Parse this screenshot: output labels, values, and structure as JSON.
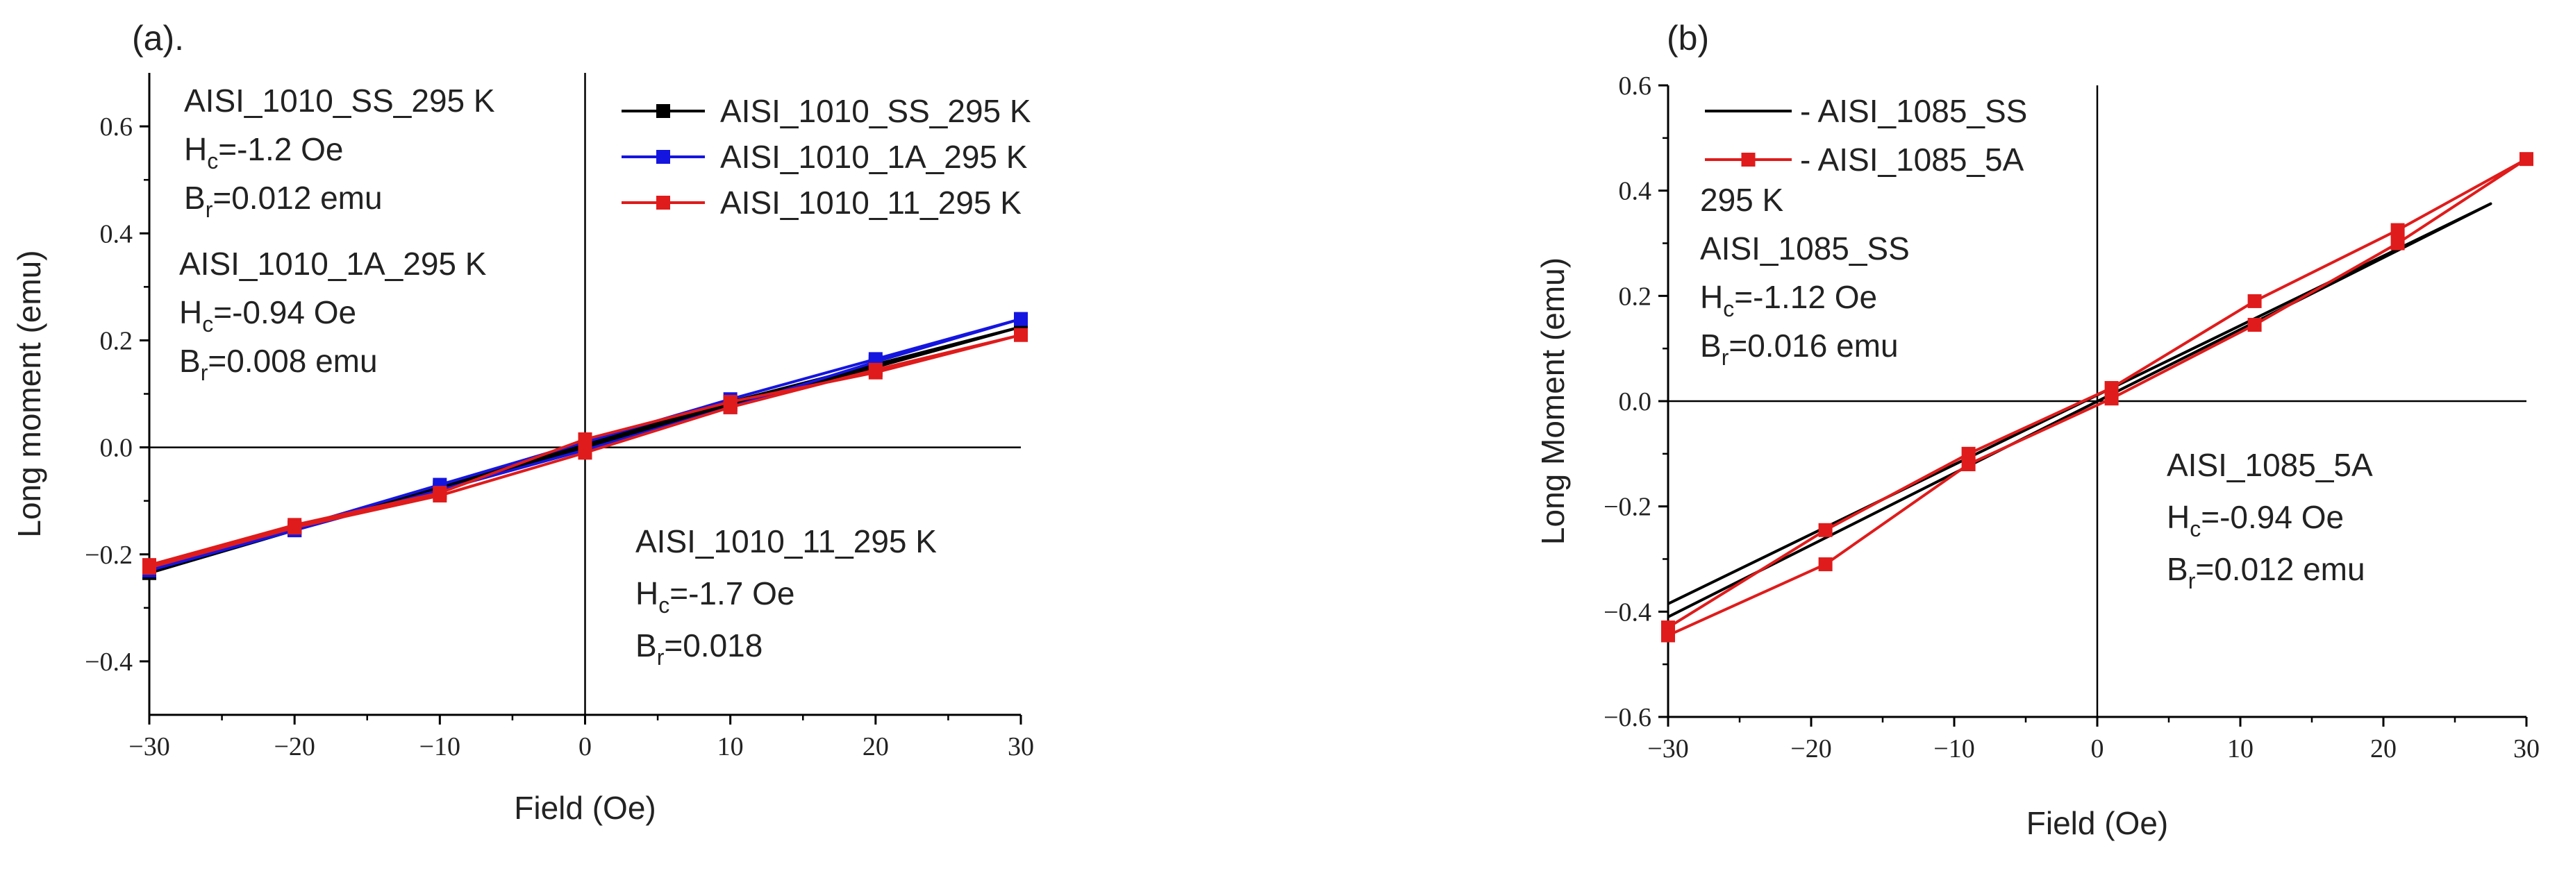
{
  "chart_data": [
    {
      "type": "line",
      "panel_label": "(a).",
      "xlabel": "Field (Oe)",
      "ylabel": "Long moment (emu)",
      "xlim": [
        -30,
        30
      ],
      "ylim": [
        -0.5,
        0.7
      ],
      "xticks": [
        -30,
        -20,
        -10,
        0,
        10,
        20,
        30
      ],
      "yticks": [
        -0.4,
        -0.2,
        0.0,
        0.2,
        0.4,
        0.6
      ],
      "xtick_labels": [
        "−30",
        "−20",
        "−10",
        "0",
        "10",
        "20",
        "30"
      ],
      "ytick_labels": [
        "−0.4",
        "−0.2",
        "0.0",
        "0.2",
        "0.4",
        "0.6"
      ],
      "legend_position": "top-right",
      "series": [
        {
          "name": "AISI_1010_SS_295 K",
          "color": "#000000",
          "x": [
            -30,
            -20,
            -10,
            0,
            10,
            20,
            30,
            20,
            10,
            0,
            -10,
            -20,
            -30
          ],
          "y": [
            -0.235,
            -0.155,
            -0.075,
            0.005,
            0.085,
            0.155,
            0.225,
            0.15,
            0.08,
            0.0,
            -0.08,
            -0.15,
            -0.225
          ]
        },
        {
          "name": "AISI_1010_1A_295 K",
          "color": "#1515e0",
          "x": [
            -30,
            -20,
            -10,
            0,
            10,
            20,
            30,
            20,
            10,
            0,
            -10,
            -20,
            -30
          ],
          "y": [
            -0.225,
            -0.15,
            -0.07,
            0.01,
            0.09,
            0.165,
            0.24,
            0.16,
            0.075,
            -0.005,
            -0.08,
            -0.155,
            -0.23
          ]
        },
        {
          "name": "AISI_1010_11_295 K",
          "color": "#e01b1b",
          "x": [
            -30,
            -20,
            -10,
            0,
            10,
            20,
            30,
            20,
            10,
            0,
            -10,
            -20,
            -30
          ],
          "y": [
            -0.22,
            -0.145,
            -0.085,
            0.015,
            0.085,
            0.14,
            0.21,
            0.145,
            0.075,
            -0.01,
            -0.09,
            -0.15,
            -0.225
          ]
        }
      ],
      "annotations": [
        {
          "lines": [
            {
              "text": "AISI_1010_SS_295 K"
            },
            {
              "main": "H",
              "sub": "c",
              "rest": "=-1.2 Oe"
            },
            {
              "main": "B",
              "sub": "r",
              "rest": "=0.012 emu"
            }
          ]
        },
        {
          "lines": [
            {
              "text": "AISI_1010_1A_295 K"
            },
            {
              "main": "H",
              "sub": "c",
              "rest": "=-0.94 Oe"
            },
            {
              "main": "B",
              "sub": "r",
              "rest": "=0.008 emu"
            }
          ]
        },
        {
          "lines": [
            {
              "text": "AISI_1010_11_295 K"
            },
            {
              "main": "H",
              "sub": "c",
              "rest": "=-1.7 Oe"
            },
            {
              "main": "B",
              "sub": "r",
              "rest": "=0.018"
            }
          ]
        }
      ]
    },
    {
      "type": "line",
      "panel_label": "(b)",
      "xlabel": "Field (Oe)",
      "ylabel": "Long Moment (emu)",
      "xlim": [
        -30,
        30
      ],
      "ylim": [
        -0.6,
        0.6
      ],
      "xticks": [
        -30,
        -20,
        -10,
        0,
        10,
        20,
        30
      ],
      "yticks": [
        -0.6,
        -0.4,
        -0.2,
        0.0,
        0.2,
        0.4,
        0.6
      ],
      "xtick_labels": [
        "−30",
        "−20",
        "−10",
        "0",
        "10",
        "20",
        "30"
      ],
      "ytick_labels": [
        "−0.6",
        "−0.4",
        "−0.2",
        "0.0",
        "0.2",
        "0.4",
        "0.6"
      ],
      "legend_position": "top-left",
      "series": [
        {
          "name": "- AISI_1085_SS",
          "color": "#000000",
          "markers": false,
          "x": [
            -30,
            27.5,
            -30
          ],
          "y": [
            -0.385,
            0.375,
            -0.41
          ]
        },
        {
          "name": "- AISI_1085_5A",
          "color": "#e01b1b",
          "markers": true,
          "x": [
            -30,
            -19,
            -9,
            1,
            11,
            21,
            30,
            21,
            11,
            1,
            -9,
            -19,
            -30
          ],
          "y": [
            -0.43,
            -0.245,
            -0.1,
            0.025,
            0.19,
            0.325,
            0.46,
            0.3,
            0.145,
            0.005,
            -0.12,
            -0.31,
            -0.445
          ]
        }
      ],
      "annotations": [
        {
          "lines": [
            {
              "text": "295 K"
            },
            {
              "text": "AISI_1085_SS"
            },
            {
              "main": "H",
              "sub": "c",
              "rest": "=-1.12 Oe"
            },
            {
              "main": "B",
              "sub": "r",
              "rest": "=0.016 emu"
            }
          ]
        },
        {
          "lines": [
            {
              "text": "AISI_1085_5A"
            },
            {
              "main": "H",
              "sub": "c",
              "rest": "=-0.94 Oe"
            },
            {
              "main": "B",
              "sub": "r",
              "rest": "=0.012 emu"
            }
          ]
        }
      ]
    }
  ]
}
